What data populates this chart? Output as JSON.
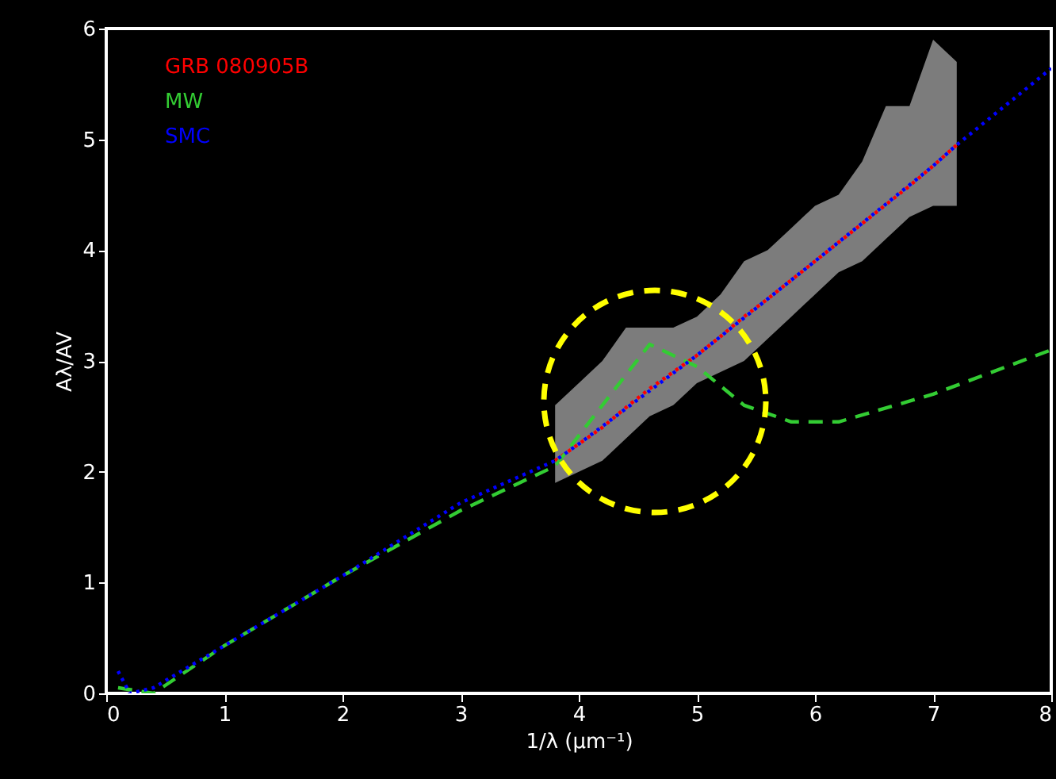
{
  "chart_data": {
    "type": "line",
    "xlabel": "1/λ (μm⁻¹)",
    "ylabel": "Aλ/AV",
    "xlim": [
      0,
      8
    ],
    "ylim": [
      0,
      6
    ],
    "xticks": [
      0,
      1,
      2,
      3,
      4,
      5,
      6,
      7,
      8
    ],
    "yticks": [
      0,
      1,
      2,
      3,
      4,
      5,
      6
    ],
    "grid": false,
    "legend": "top left",
    "marker": "none",
    "series": [
      {
        "name": "GRB 080905B",
        "color": "#ff0000",
        "line_style": "dotted",
        "x": [
          3.8,
          4.0,
          4.2,
          4.4,
          4.6,
          4.8,
          5.0,
          5.2,
          5.4,
          5.6,
          5.8,
          6.0,
          6.2,
          6.4,
          6.6,
          6.8,
          7.0,
          7.2
        ],
        "values": [
          2.1,
          2.25,
          2.4,
          2.58,
          2.75,
          2.9,
          3.05,
          3.22,
          3.4,
          3.56,
          3.73,
          3.9,
          4.07,
          4.24,
          4.41,
          4.58,
          4.76,
          4.95
        ],
        "lower": [
          1.9,
          2.0,
          2.1,
          2.3,
          2.5,
          2.6,
          2.8,
          2.9,
          3.0,
          3.2,
          3.4,
          3.6,
          3.8,
          3.9,
          4.1,
          4.3,
          4.4,
          4.4
        ],
        "upper": [
          2.6,
          2.8,
          3.0,
          3.3,
          3.3,
          3.3,
          3.4,
          3.6,
          3.9,
          4.0,
          4.2,
          4.4,
          4.5,
          4.8,
          5.3,
          5.3,
          5.9,
          5.7
        ]
      },
      {
        "name": "MW",
        "color": "#33cc33",
        "line_style": "dashed",
        "x": [
          0.1,
          0.4,
          1,
          2,
          3,
          3.8,
          4.2,
          4.6,
          5.0,
          5.4,
          5.8,
          6.2,
          7,
          8
        ],
        "values": [
          0.05,
          0.0,
          0.43,
          1.06,
          1.65,
          2.05,
          2.6,
          3.15,
          2.95,
          2.6,
          2.45,
          2.45,
          2.7,
          3.1
        ]
      },
      {
        "name": "SMC",
        "color": "#0000ff",
        "line_style": "dotted",
        "x": [
          0.1,
          0.2,
          0.4,
          1,
          2,
          3,
          3.8,
          4,
          5,
          6,
          7,
          7.2,
          8
        ],
        "values": [
          0.2,
          0.0,
          0.05,
          0.43,
          1.06,
          1.72,
          2.1,
          2.25,
          3.05,
          3.9,
          4.76,
          4.95,
          5.64
        ]
      }
    ]
  }
}
